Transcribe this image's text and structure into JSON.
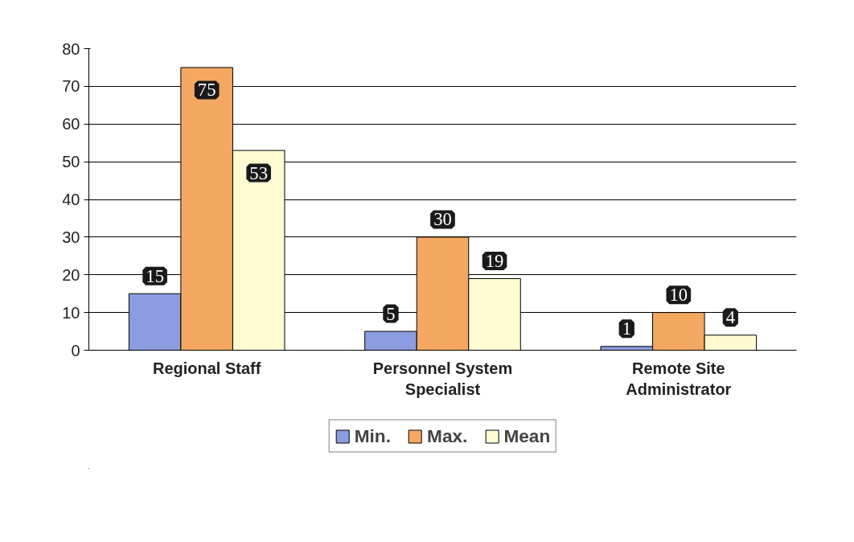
{
  "chart_data": {
    "type": "bar",
    "categories": [
      "Regional Staff",
      "Personnel System\nSpecialist",
      "Remote Site\nAdministrator"
    ],
    "series": [
      {
        "name": "Min.",
        "color": "#8b9de0",
        "values": [
          15,
          5,
          1
        ]
      },
      {
        "name": "Max.",
        "color": "#f5a862",
        "values": [
          75,
          30,
          10
        ]
      },
      {
        "name": "Mean",
        "color": "#fffbd2",
        "values": [
          53,
          19,
          4
        ]
      }
    ],
    "ylim": [
      0,
      80
    ],
    "yticks": [
      0,
      10,
      20,
      30,
      40,
      50,
      60,
      70,
      80
    ],
    "grid": "y",
    "legend": "bottom",
    "data_labels": true
  }
}
